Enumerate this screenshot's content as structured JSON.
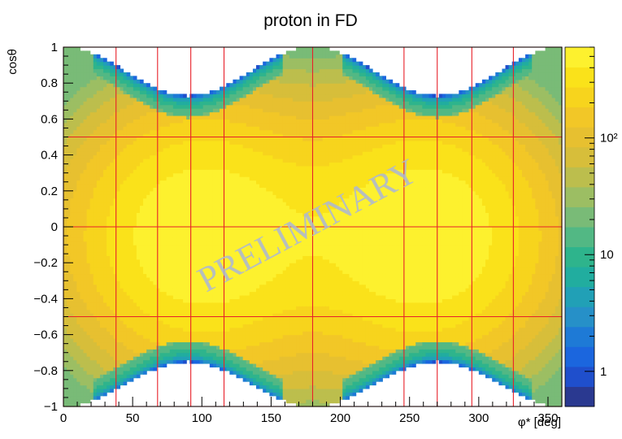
{
  "chart_data": {
    "type": "heatmap",
    "title": "proton in FD",
    "xlabel": "φ* [deg]",
    "ylabel": "cosθ",
    "xlim": [
      0,
      360
    ],
    "ylim": [
      -1,
      1
    ],
    "xticks": [
      0,
      50,
      100,
      150,
      200,
      250,
      300,
      350
    ],
    "xtick_labels": [
      "0",
      "50",
      "100",
      "150",
      "200",
      "250",
      "300",
      "350"
    ],
    "yticks": [
      -1,
      -0.8,
      -0.6,
      -0.4,
      -0.2,
      0,
      0.2,
      0.4,
      0.6,
      0.8,
      1
    ],
    "ytick_labels": [
      "−1",
      "−0.8",
      "−0.6",
      "−0.4",
      "−0.2",
      "0",
      "0.2",
      "0.4",
      "0.6",
      "0.8",
      "1"
    ],
    "colorbar": {
      "scale": "log",
      "range": [
        0.5,
        600
      ],
      "ticks": [
        1,
        10,
        100
      ],
      "tick_labels": [
        "1",
        "10",
        "10²"
      ],
      "colors": [
        "#2a3990",
        "#1f4fcc",
        "#1b66de",
        "#1e7ad6",
        "#2690c8",
        "#21a0b6",
        "#21ad9f",
        "#2eb48c",
        "#52b884",
        "#79bb77",
        "#9cbe63",
        "#bcbe4d",
        "#d7be3a",
        "#e7c030",
        "#f2c727",
        "#f7d41d",
        "#fae21a",
        "#fdf12e"
      ]
    },
    "bin_edges_phi": [
      0,
      38,
      68,
      92,
      116,
      180,
      246,
      270,
      295,
      325,
      360
    ],
    "bin_edges_costheta": [
      -1,
      -0.5,
      0,
      0.5,
      1
    ],
    "density_model": {
      "peaks": [
        {
          "phi": 100,
          "costheta": -0.05,
          "counts": 600
        },
        {
          "phi": 260,
          "costheta": -0.05,
          "counts": 600
        }
      ],
      "edge_counts": 20,
      "upper_gap_min_costheta": 0.73,
      "lower_gap_max_costheta": -0.75
    },
    "watermark": "PRELIMINARY",
    "grid": true
  }
}
